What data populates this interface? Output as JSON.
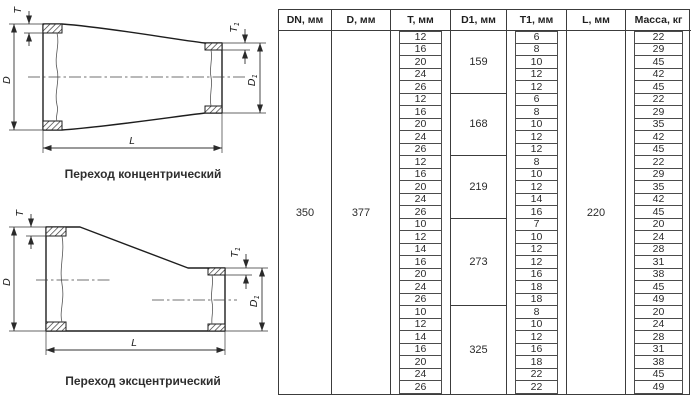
{
  "drawings": {
    "concentric": {
      "caption": "Переход концентрический"
    },
    "eccentric": {
      "caption": "Переход эксцентрический"
    },
    "dim_labels": {
      "t": "T",
      "t1_main": "T",
      "t1_sub": "1",
      "d": "D",
      "d1_main": "D",
      "d1_sub": "1",
      "l": "L"
    }
  },
  "table": {
    "headers": [
      "DN, мм",
      "D, мм",
      "T, мм",
      "D1, мм",
      "T1, мм",
      "L, мм",
      "Масса, кг"
    ],
    "dn": "350",
    "d": "377",
    "l": "220",
    "groups": [
      {
        "d1": "159",
        "rows": [
          [
            "12",
            "6",
            "22"
          ],
          [
            "16",
            "8",
            "29"
          ],
          [
            "20",
            "10",
            "45"
          ],
          [
            "24",
            "12",
            "42"
          ],
          [
            "26",
            "12",
            "45"
          ]
        ]
      },
      {
        "d1": "168",
        "rows": [
          [
            "12",
            "6",
            "22"
          ],
          [
            "16",
            "8",
            "29"
          ],
          [
            "20",
            "10",
            "35"
          ],
          [
            "24",
            "12",
            "42"
          ],
          [
            "26",
            "12",
            "45"
          ]
        ]
      },
      {
        "d1": "219",
        "rows": [
          [
            "12",
            "8",
            "22"
          ],
          [
            "16",
            "10",
            "29"
          ],
          [
            "20",
            "12",
            "35"
          ],
          [
            "24",
            "14",
            "42"
          ],
          [
            "26",
            "16",
            "45"
          ]
        ]
      },
      {
        "d1": "273",
        "rows": [
          [
            "10",
            "7",
            "20"
          ],
          [
            "12",
            "10",
            "24"
          ],
          [
            "14",
            "12",
            "28"
          ],
          [
            "16",
            "12",
            "31"
          ],
          [
            "20",
            "16",
            "38"
          ],
          [
            "24",
            "18",
            "45"
          ],
          [
            "26",
            "18",
            "49"
          ]
        ]
      },
      {
        "d1": "325",
        "rows": [
          [
            "10",
            "8",
            "20"
          ],
          [
            "12",
            "10",
            "24"
          ],
          [
            "14",
            "12",
            "28"
          ],
          [
            "16",
            "16",
            "31"
          ],
          [
            "20",
            "18",
            "38"
          ],
          [
            "24",
            "22",
            "45"
          ],
          [
            "26",
            "22",
            "49"
          ]
        ]
      }
    ]
  }
}
